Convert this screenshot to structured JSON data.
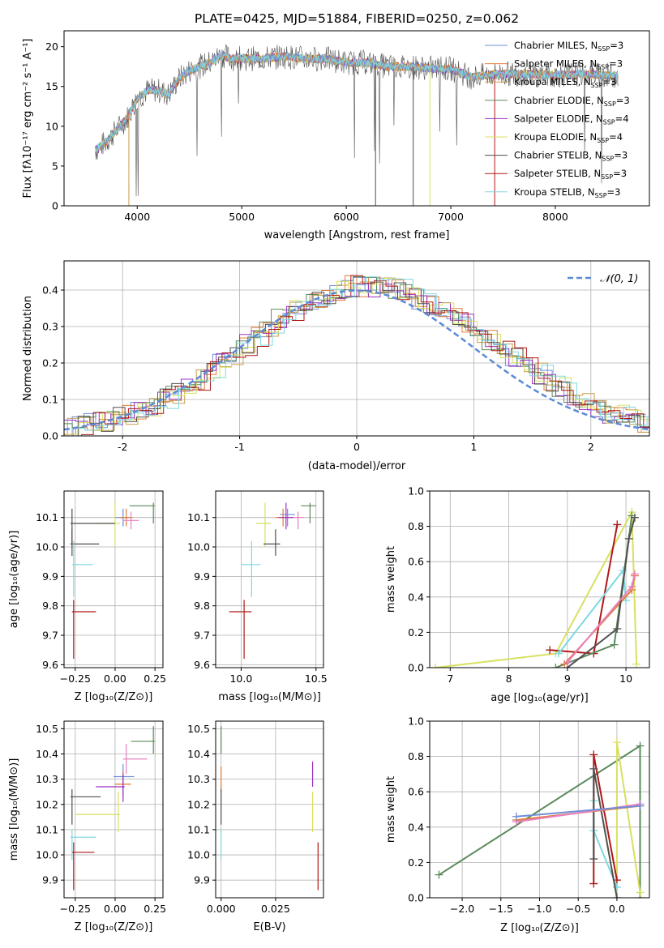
{
  "colors": {
    "chabrier_miles": "#6f8fd6",
    "salpeter_miles": "#e07b39",
    "kroupa_miles": "#c8a04a",
    "chabrier_elodie": "#5b8a5b",
    "salpeter_elodie": "#9b30c0",
    "kroupa_elodie": "#d8e060",
    "chabrier_stelib": "#505050",
    "salpeter_stelib": "#b01818",
    "kroupa_stelib": "#7fd8e0",
    "pink": "#e880c0",
    "normal": "#5b8ad6"
  },
  "chart_data": [
    {
      "id": "spectrum",
      "type": "line",
      "title": "PLATE=0425, MJD=51884, FIBERID=0250, z=0.062",
      "xlabel": "wavelength [Angstrom, rest frame]",
      "ylabel": "Flux [fλ10⁻¹⁷ erg cm⁻² s⁻¹ A⁻¹]",
      "xlim": [
        3300,
        8900
      ],
      "ylim": [
        0,
        22
      ],
      "xticks": [
        4000,
        5000,
        6000,
        7000,
        8000
      ],
      "yticks": [
        0,
        5,
        10,
        15,
        20
      ],
      "legend_position": "top-right",
      "legend": [
        {
          "label": "Chabrier MILES, N",
          "sub": "SSP",
          "eq": "=3",
          "color": "chabrier_miles"
        },
        {
          "label": "Salpeter MILES, N",
          "sub": "SSP",
          "eq": "=3",
          "color": "salpeter_miles"
        },
        {
          "label": "Kroupa MILES, N",
          "sub": "SSP",
          "eq": "=3",
          "color": "kroupa_miles"
        },
        {
          "label": "Chabrier ELODIE, N",
          "sub": "SSP",
          "eq": "=3",
          "color": "chabrier_elodie"
        },
        {
          "label": "Salpeter ELODIE, N",
          "sub": "SSP",
          "eq": "=4",
          "color": "salpeter_elodie"
        },
        {
          "label": "Kroupa ELODIE, N",
          "sub": "SSP",
          "eq": "=4",
          "color": "kroupa_elodie"
        },
        {
          "label": "Chabrier STELIB, N",
          "sub": "SSP",
          "eq": "=3",
          "color": "chabrier_stelib"
        },
        {
          "label": "Salpeter STELIB, N",
          "sub": "SSP",
          "eq": "=3",
          "color": "salpeter_stelib"
        },
        {
          "label": "Kroupa STELIB, N",
          "sub": "SSP",
          "eq": "=3",
          "color": "kroupa_stelib"
        }
      ],
      "continuum": {
        "x": [
          3600,
          3700,
          3800,
          3900,
          4000,
          4100,
          4200,
          4300,
          4400,
          4500,
          4600,
          4700,
          4800,
          4900,
          5000,
          5200,
          5400,
          5600,
          5800,
          6000,
          6200,
          6400,
          6600,
          6800,
          7000,
          7200,
          7400,
          7600,
          7800,
          8000,
          8200,
          8400,
          8600
        ],
        "y": [
          7,
          8,
          9.5,
          11,
          13.5,
          14.5,
          14.5,
          14,
          16,
          17,
          17.5,
          18,
          19,
          18.5,
          18.5,
          18.5,
          18.8,
          18.5,
          18.5,
          18,
          18,
          17.5,
          17.5,
          17.3,
          17.2,
          16.2,
          16.5,
          16.6,
          16.5,
          16.4,
          16.6,
          16.5,
          16.3
        ]
      }
    },
    {
      "id": "residuals",
      "type": "line",
      "xlabel": "(data-model)/error",
      "ylabel": "Normed distribution",
      "xlim": [
        -2.5,
        2.5
      ],
      "ylim": [
        0,
        0.48
      ],
      "xticks": [
        -2,
        -1,
        0,
        1,
        2
      ],
      "yticks": [
        0.0,
        0.1,
        0.2,
        0.3,
        0.4
      ],
      "grid": true,
      "legend_position": "top-right",
      "legend_label": "𝒩(0, 1)",
      "bin_width": 0.1,
      "hist": [
        0.02,
        0.025,
        0.035,
        0.04,
        0.05,
        0.06,
        0.07,
        0.085,
        0.1,
        0.115,
        0.135,
        0.155,
        0.18,
        0.2,
        0.225,
        0.25,
        0.275,
        0.3,
        0.32,
        0.345,
        0.36,
        0.375,
        0.39,
        0.4,
        0.41,
        0.41,
        0.41,
        0.405,
        0.4,
        0.39,
        0.375,
        0.36,
        0.345,
        0.325,
        0.305,
        0.285,
        0.26,
        0.24,
        0.215,
        0.195,
        0.17,
        0.15,
        0.13,
        0.11,
        0.095,
        0.08,
        0.065,
        0.055,
        0.045,
        0.04
      ]
    },
    {
      "id": "age-vs-z",
      "type": "scatter",
      "xlabel": "Z [log₁₀(Z/Z⊙)]",
      "ylabel": "age  [log₁₀(age/yr)]",
      "xlim": [
        -0.32,
        0.3
      ],
      "ylim": [
        9.59,
        10.19
      ],
      "xticks": [
        -0.25,
        0.0,
        0.25
      ],
      "xtick_labels": [
        "−0.25",
        "0.00",
        "0.25"
      ],
      "yticks": [
        9.6,
        9.7,
        9.8,
        9.9,
        10.0,
        10.1
      ],
      "grid": true,
      "points": [
        {
          "x": 0.05,
          "y": 10.1,
          "xlo": 0.0,
          "xhi": 0.1,
          "ylo": 10.07,
          "yhi": 10.13,
          "color": "chabrier_miles"
        },
        {
          "x": 0.07,
          "y": 10.1,
          "xlo": 0.03,
          "xhi": 0.11,
          "ylo": 10.07,
          "yhi": 10.13,
          "color": "salpeter_miles"
        },
        {
          "x": 0.1,
          "y": 10.09,
          "xlo": 0.05,
          "xhi": 0.15,
          "ylo": 10.06,
          "yhi": 10.12,
          "color": "pink"
        },
        {
          "x": 0.24,
          "y": 10.14,
          "xlo": 0.09,
          "xhi": 0.25,
          "ylo": 10.08,
          "yhi": 10.15,
          "color": "chabrier_elodie"
        },
        {
          "x": 0.0,
          "y": 10.08,
          "xlo": -0.12,
          "xhi": 0.03,
          "ylo": 10.0,
          "yhi": 10.15,
          "color": "kroupa_elodie"
        },
        {
          "x": -0.27,
          "y": 10.08,
          "xlo": -0.28,
          "xhi": 0.0,
          "ylo": 10.01,
          "yhi": 10.13,
          "color": "chabrier_stelib"
        },
        {
          "x": -0.27,
          "y": 10.01,
          "xlo": -0.28,
          "xhi": -0.1,
          "ylo": 9.97,
          "yhi": 10.06,
          "color": "chabrier_stelib"
        },
        {
          "x": -0.26,
          "y": 9.94,
          "xlo": -0.27,
          "xhi": -0.14,
          "ylo": 9.83,
          "yhi": 10.02,
          "color": "kroupa_stelib"
        },
        {
          "x": -0.26,
          "y": 9.78,
          "xlo": -0.27,
          "xhi": -0.12,
          "ylo": 9.62,
          "yhi": 9.82,
          "color": "salpeter_stelib"
        }
      ]
    },
    {
      "id": "age-vs-mass",
      "type": "scatter",
      "xlabel": "mass [log₁₀(M/M⊙)]",
      "xlim": [
        9.83,
        10.55
      ],
      "ylim": [
        9.59,
        10.19
      ],
      "xticks": [
        10.0,
        10.5
      ],
      "xtick_labels": [
        "10.0",
        "10.5"
      ],
      "yticks": [
        9.6,
        9.7,
        9.8,
        9.9,
        10.0,
        10.1
      ],
      "grid": true,
      "points": [
        {
          "x": 10.31,
          "y": 10.11,
          "xlo": 10.26,
          "xhi": 10.36,
          "ylo": 10.07,
          "yhi": 10.13,
          "color": "chabrier_miles"
        },
        {
          "x": 10.28,
          "y": 10.1,
          "xlo": 10.23,
          "xhi": 10.33,
          "ylo": 10.07,
          "yhi": 10.13,
          "color": "salpeter_miles"
        },
        {
          "x": 10.38,
          "y": 10.1,
          "xlo": 10.33,
          "xhi": 10.42,
          "ylo": 10.06,
          "yhi": 10.12,
          "color": "pink"
        },
        {
          "x": 10.3,
          "y": 10.1,
          "xlo": 10.25,
          "xhi": 10.35,
          "ylo": 10.06,
          "yhi": 10.15,
          "color": "salpeter_elodie"
        },
        {
          "x": 10.46,
          "y": 10.14,
          "xlo": 10.4,
          "xhi": 10.5,
          "ylo": 10.08,
          "yhi": 10.15,
          "color": "chabrier_elodie"
        },
        {
          "x": 10.16,
          "y": 10.08,
          "xlo": 10.1,
          "xhi": 10.2,
          "ylo": 10.0,
          "yhi": 10.15,
          "color": "kroupa_elodie"
        },
        {
          "x": 10.23,
          "y": 10.01,
          "xlo": 10.15,
          "xhi": 10.26,
          "ylo": 9.97,
          "yhi": 10.06,
          "color": "chabrier_stelib"
        },
        {
          "x": 10.07,
          "y": 9.94,
          "xlo": 10.0,
          "xhi": 10.13,
          "ylo": 9.83,
          "yhi": 10.02,
          "color": "kroupa_stelib"
        },
        {
          "x": 10.02,
          "y": 9.78,
          "xlo": 9.92,
          "xhi": 10.07,
          "ylo": 9.62,
          "yhi": 9.82,
          "color": "salpeter_stelib"
        }
      ]
    },
    {
      "id": "weight-vs-age",
      "type": "line",
      "xlabel": "age  [log₁₀(age/yr)]",
      "ylabel": "mass weight",
      "xlim": [
        6.65,
        10.4
      ],
      "ylim": [
        0,
        1.0
      ],
      "xticks": [
        7,
        8,
        9,
        10
      ],
      "yticks": [
        0.0,
        0.2,
        0.4,
        0.6,
        0.8,
        1.0
      ],
      "grid": true,
      "series": [
        {
          "color": "kroupa_elodie",
          "x": [
            6.75,
            8.8,
            10.1,
            10.18
          ],
          "y": [
            0.0,
            0.08,
            0.88,
            0.02
          ]
        },
        {
          "color": "salpeter_stelib",
          "x": [
            8.7,
            9.45,
            9.85
          ],
          "y": [
            0.1,
            0.08,
            0.81
          ]
        },
        {
          "color": "chabrier_elodie",
          "x": [
            8.8,
            9.8,
            10.1
          ],
          "y": [
            0.0,
            0.13,
            0.86
          ]
        },
        {
          "color": "kroupa_stelib",
          "x": [
            8.85,
            9.95,
            10.0
          ],
          "y": [
            0.08,
            0.55,
            0.38
          ]
        },
        {
          "color": "salpeter_miles",
          "x": [
            8.95,
            10.1,
            10.15
          ],
          "y": [
            0.02,
            0.44,
            0.52
          ]
        },
        {
          "color": "chabrier_stelib",
          "x": [
            9.0,
            9.85,
            10.05,
            10.15
          ],
          "y": [
            0.0,
            0.22,
            0.73,
            0.85
          ]
        },
        {
          "color": "pink",
          "x": [
            9.0,
            10.1,
            10.15
          ],
          "y": [
            0.03,
            0.46,
            0.53
          ]
        }
      ]
    },
    {
      "id": "mass-vs-z",
      "type": "scatter",
      "xlabel": "Z [log₁₀(Z/Z⊙)]",
      "ylabel": "mass [log₁₀(M/M⊙)]",
      "xlim": [
        -0.32,
        0.3
      ],
      "ylim": [
        9.83,
        10.53
      ],
      "xticks": [
        -0.25,
        0.0,
        0.25
      ],
      "xtick_labels": [
        "−0.25",
        "0.00",
        "0.25"
      ],
      "yticks": [
        9.9,
        10.0,
        10.1,
        10.2,
        10.3,
        10.4,
        10.5
      ],
      "grid": true,
      "points": [
        {
          "x": 0.24,
          "y": 10.45,
          "xlo": 0.1,
          "xhi": 0.25,
          "ylo": 10.4,
          "yhi": 10.51,
          "color": "chabrier_elodie"
        },
        {
          "x": 0.07,
          "y": 10.38,
          "xlo": 0.05,
          "xhi": 0.2,
          "ylo": 10.32,
          "yhi": 10.44,
          "color": "pink"
        },
        {
          "x": 0.05,
          "y": 10.31,
          "xlo": -0.01,
          "xhi": 0.12,
          "ylo": 10.26,
          "yhi": 10.36,
          "color": "chabrier_miles"
        },
        {
          "x": 0.05,
          "y": 10.28,
          "xlo": 0.0,
          "xhi": 0.1,
          "ylo": 10.23,
          "yhi": 10.33,
          "color": "salpeter_miles"
        },
        {
          "x": 0.05,
          "y": 10.27,
          "xlo": -0.12,
          "xhi": 0.06,
          "ylo": 10.21,
          "yhi": 10.32,
          "color": "salpeter_elodie"
        },
        {
          "x": -0.27,
          "y": 10.23,
          "xlo": -0.28,
          "xhi": -0.09,
          "ylo": 10.12,
          "yhi": 10.26,
          "color": "chabrier_stelib"
        },
        {
          "x": 0.02,
          "y": 10.16,
          "xlo": -0.25,
          "xhi": 0.03,
          "ylo": 10.09,
          "yhi": 10.25,
          "color": "kroupa_elodie"
        },
        {
          "x": -0.27,
          "y": 10.07,
          "xlo": -0.28,
          "xhi": -0.12,
          "ylo": 9.98,
          "yhi": 10.1,
          "color": "kroupa_stelib"
        },
        {
          "x": -0.26,
          "y": 10.01,
          "xlo": -0.27,
          "xhi": -0.13,
          "ylo": 9.86,
          "yhi": 10.05,
          "color": "salpeter_stelib"
        }
      ]
    },
    {
      "id": "mass-vs-ebv",
      "type": "scatter",
      "xlabel": "E(B-V)",
      "xlim": [
        -0.0025,
        0.047
      ],
      "ylim": [
        9.83,
        10.53
      ],
      "xticks": [
        0.0,
        0.025
      ],
      "xtick_labels": [
        "0.000",
        "0.025"
      ],
      "yticks": [
        9.9,
        10.0,
        10.1,
        10.2,
        10.3,
        10.4,
        10.5
      ],
      "grid": true,
      "points": [
        {
          "x": 0.0,
          "y": 10.45,
          "ylo": 10.4,
          "yhi": 10.51,
          "color": "chabrier_elodie"
        },
        {
          "x": 0.0,
          "y": 10.3,
          "ylo": 10.25,
          "yhi": 10.35,
          "color": "salpeter_miles"
        },
        {
          "x": 0.0,
          "y": 10.2,
          "ylo": 10.12,
          "yhi": 10.26,
          "color": "chabrier_stelib"
        },
        {
          "x": 0.0,
          "y": 10.05,
          "ylo": 9.98,
          "yhi": 10.1,
          "color": "kroupa_stelib"
        },
        {
          "x": 0.042,
          "y": 10.32,
          "ylo": 10.27,
          "yhi": 10.37,
          "color": "salpeter_elodie"
        },
        {
          "x": 0.042,
          "y": 10.16,
          "ylo": 10.09,
          "yhi": 10.25,
          "color": "kroupa_elodie"
        },
        {
          "x": 0.0445,
          "y": 9.96,
          "ylo": 9.86,
          "yhi": 10.05,
          "color": "salpeter_stelib"
        }
      ]
    },
    {
      "id": "weight-vs-z",
      "type": "line",
      "xlabel": "Z [log₁₀(Z/Z⊙)]",
      "ylabel": "mass weight",
      "xlim": [
        -2.42,
        0.42
      ],
      "ylim": [
        0,
        1.0
      ],
      "xticks": [
        -2.0,
        -1.5,
        -1.0,
        -0.5,
        0.0
      ],
      "xtick_labels": [
        "−2.0",
        "−1.5",
        "−1.0",
        "−0.5",
        "0.0"
      ],
      "yticks": [
        0.0,
        0.2,
        0.4,
        0.6,
        0.8,
        1.0
      ],
      "grid": true,
      "series": [
        {
          "color": "chabrier_elodie",
          "x": [
            -2.3,
            0.3,
            0.3
          ],
          "y": [
            0.13,
            0.86,
            0.0
          ]
        },
        {
          "color": "kroupa_elodie",
          "x": [
            0.0,
            0.0,
            0.3
          ],
          "y": [
            0.0,
            0.88,
            0.03
          ]
        },
        {
          "color": "salpeter_stelib",
          "x": [
            -0.3,
            -0.3,
            0.0
          ],
          "y": [
            0.08,
            0.81,
            0.1
          ]
        },
        {
          "color": "kroupa_stelib",
          "x": [
            -0.3,
            -0.3,
            -0.3,
            0.0
          ],
          "y": [
            0.38,
            0.55,
            0.38,
            0.06
          ]
        },
        {
          "color": "chabrier_stelib",
          "x": [
            -0.3,
            -0.3,
            0.0
          ],
          "y": [
            0.22,
            0.73,
            0.0
          ]
        },
        {
          "color": "salpeter_miles",
          "x": [
            -1.3,
            0.3
          ],
          "y": [
            0.44,
            0.52
          ]
        },
        {
          "color": "pink",
          "x": [
            -1.3,
            0.3
          ],
          "y": [
            0.43,
            0.53
          ]
        },
        {
          "color": "chabrier_miles",
          "x": [
            -1.3,
            0.3
          ],
          "y": [
            0.46,
            0.52
          ]
        }
      ]
    }
  ]
}
